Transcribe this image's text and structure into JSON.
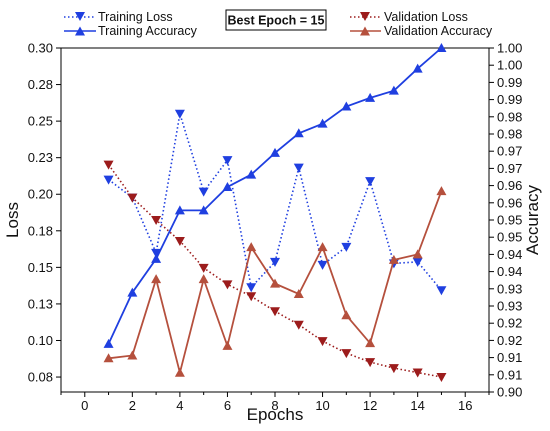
{
  "chart_data": {
    "type": "line",
    "annotation": "Best Epoch = 15",
    "xlabel": "Epochs",
    "ylabel_left": "Loss",
    "ylabel_right": "Accuracy",
    "xlim": [
      -1,
      17
    ],
    "ylim_left": [
      0.07,
      0.3
    ],
    "ylim_right": [
      0.9,
      1.0
    ],
    "x_ticks": [
      "0",
      "2",
      "4",
      "6",
      "8",
      "10",
      "12",
      "14",
      "16"
    ],
    "y_left_ticks": [
      "0.08",
      "0.10",
      "0.13",
      "0.15",
      "0.18",
      "0.20",
      "0.23",
      "0.25",
      "0.28",
      "0.30"
    ],
    "y_right_ticks": [
      "0.90",
      "0.91",
      "0.91",
      "0.92",
      "0.92",
      "0.93",
      "0.93",
      "0.94",
      "0.94",
      "0.95",
      "0.95",
      "0.96",
      "0.96",
      "0.97",
      "0.97",
      "0.98",
      "0.98",
      "0.99",
      "0.99",
      "1.00",
      "1.00"
    ],
    "x": [
      1,
      2,
      3,
      4,
      5,
      6,
      7,
      8,
      9,
      10,
      11,
      12,
      13,
      14,
      15
    ],
    "series": [
      {
        "name": "Training Loss",
        "axis": "left",
        "color": "#1f3fe0",
        "style": "dotted",
        "marker": "triangle-down",
        "values": [
          0.212,
          0.2,
          0.163,
          0.256,
          0.204,
          0.225,
          0.14,
          0.157,
          0.22,
          0.155,
          0.167,
          0.211,
          0.156,
          0.157,
          0.138
        ]
      },
      {
        "name": "Training Accuracy",
        "axis": "right",
        "color": "#1f3fe0",
        "style": "solid",
        "marker": "triangle-up",
        "values": [
          0.914,
          0.9289,
          0.9387,
          0.9528,
          0.9528,
          0.9596,
          0.9632,
          0.9695,
          0.9752,
          0.978,
          0.983,
          0.9855,
          0.9876,
          0.994,
          1.0
        ]
      },
      {
        "name": "Validation Loss",
        "axis": "left",
        "color": "#9c1c1c",
        "style": "dotted",
        "marker": "triangle-down",
        "values": [
          0.222,
          0.2,
          0.185,
          0.171,
          0.153,
          0.142,
          0.134,
          0.124,
          0.115,
          0.104,
          0.096,
          0.09,
          0.086,
          0.083,
          0.08
        ]
      },
      {
        "name": "Validation Accuracy",
        "axis": "right",
        "color": "#b5503d",
        "style": "solid",
        "marker": "triangle-up",
        "values": [
          0.9098,
          0.9106,
          0.9328,
          0.9056,
          0.9328,
          0.9134,
          0.9421,
          0.9315,
          0.9285,
          0.9421,
          0.9223,
          0.9142,
          0.9384,
          0.94,
          0.9584
        ]
      }
    ]
  },
  "legend_left": [
    "Training Loss",
    "Training Accuracy"
  ],
  "legend_right": [
    "Validation Loss",
    "Validation Accuracy"
  ]
}
